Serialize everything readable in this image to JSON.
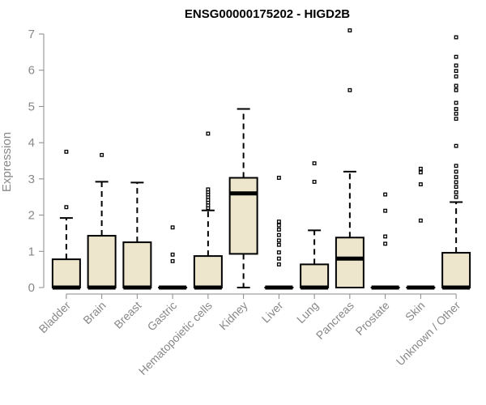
{
  "chart_data": {
    "type": "boxplot",
    "title": "ENSG00000175202 - HIGD2B",
    "xlabel": "",
    "ylabel": "Expression",
    "ylim": [
      0,
      7
    ],
    "yticks": [
      0,
      1,
      2,
      3,
      4,
      5,
      6,
      7
    ],
    "grid": false,
    "colors": {
      "box_fill": "#ede6cd",
      "stroke": "#000000",
      "axis_text": "#888888",
      "title": "#000000"
    },
    "categories": [
      "Bladder",
      "Brain",
      "Breast",
      "Gastric",
      "Hematopoietic cells",
      "Kidney",
      "Liver",
      "Lung",
      "Pancreas",
      "Prostate",
      "Skin",
      "Unknown / Other"
    ],
    "boxes": [
      {
        "q1": 0.0,
        "median": 0.0,
        "q3": 0.78,
        "whisker_low": 0.0,
        "whisker_high": 1.92,
        "outliers": [
          2.22,
          3.75
        ]
      },
      {
        "q1": 0.0,
        "median": 0.0,
        "q3": 1.43,
        "whisker_low": 0.0,
        "whisker_high": 2.92,
        "outliers": [
          3.66
        ]
      },
      {
        "q1": 0.0,
        "median": 0.0,
        "q3": 1.25,
        "whisker_low": 0.0,
        "whisker_high": 2.9,
        "outliers": []
      },
      {
        "q1": 0.0,
        "median": 0.0,
        "q3": 0.0,
        "whisker_low": 0.0,
        "whisker_high": 0.0,
        "outliers": [
          0.73,
          0.91,
          1.66
        ]
      },
      {
        "q1": 0.0,
        "median": 0.0,
        "q3": 0.87,
        "whisker_low": 0.0,
        "whisker_high": 2.13,
        "outliers": [
          2.2,
          2.27,
          2.35,
          2.42,
          2.5,
          2.57,
          2.64,
          2.71,
          4.25
        ]
      },
      {
        "q1": 0.93,
        "median": 2.6,
        "q3": 3.03,
        "whisker_low": 0.0,
        "whisker_high": 4.93,
        "outliers": []
      },
      {
        "q1": 0.0,
        "median": 0.0,
        "q3": 0.0,
        "whisker_low": 0.0,
        "whisker_high": 0.0,
        "outliers": [
          0.64,
          0.8,
          0.97,
          1.18,
          1.3,
          1.45,
          1.6,
          1.72,
          1.82,
          3.03
        ]
      },
      {
        "q1": 0.0,
        "median": 0.0,
        "q3": 0.64,
        "whisker_low": 0.0,
        "whisker_high": 1.58,
        "outliers": [
          2.92,
          3.43
        ]
      },
      {
        "q1": 0.0,
        "median": 0.8,
        "q3": 1.38,
        "whisker_low": 0.0,
        "whisker_high": 3.2,
        "outliers": [
          5.45,
          7.1
        ]
      },
      {
        "q1": 0.0,
        "median": 0.0,
        "q3": 0.0,
        "whisker_low": 0.0,
        "whisker_high": 0.0,
        "outliers": [
          1.21,
          1.41,
          2.12,
          2.57
        ]
      },
      {
        "q1": 0.0,
        "median": 0.0,
        "q3": 0.0,
        "whisker_low": 0.0,
        "whisker_high": 0.0,
        "outliers": [
          1.85,
          2.85,
          3.18,
          3.28
        ]
      },
      {
        "q1": 0.0,
        "median": 0.0,
        "q3": 0.96,
        "whisker_low": 0.0,
        "whisker_high": 2.36,
        "outliers": [
          2.5,
          2.63,
          2.78,
          2.91,
          3.05,
          3.2,
          3.36,
          3.91,
          4.66,
          4.8,
          4.93,
          5.1,
          5.45,
          5.57,
          5.83,
          5.98,
          6.13,
          6.37,
          6.91
        ]
      }
    ]
  }
}
